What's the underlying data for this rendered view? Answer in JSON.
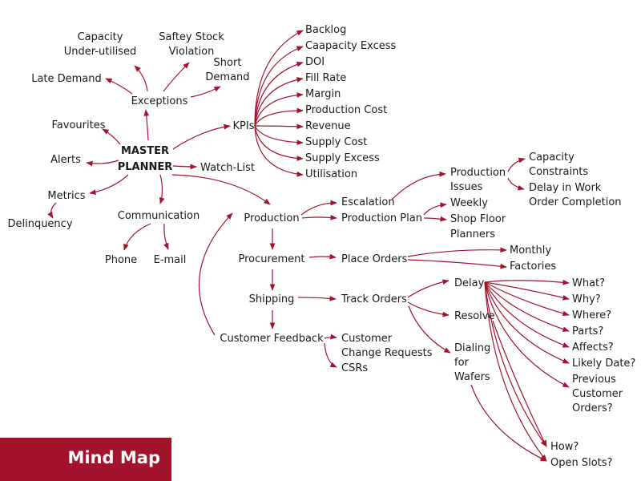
{
  "badge": {
    "label": "Mind Map"
  },
  "colors": {
    "accent": "#a3132c",
    "text": "#1a1a1a",
    "badge_text": "#ffffff"
  },
  "nodes": {
    "master_planner": [
      "MASTER",
      "PLANNER"
    ],
    "exceptions": "Exceptions",
    "capacity_underutilised": [
      "Capacity",
      "Under-utilised"
    ],
    "saftey_stock_violation": [
      "Saftey Stock",
      "Violation"
    ],
    "short_demand": [
      "Short",
      "Demand"
    ],
    "late_demand": "Late Demand",
    "favourites": "Favourites",
    "alerts": "Alerts",
    "metrics": "Metrics",
    "delinquency": "Delinquency",
    "communication": "Communication",
    "phone": "Phone",
    "email": "E-mail",
    "watch_list": "Watch-List",
    "kpis": "KPIs",
    "kpi_items": [
      "Backlog",
      "Caapacity Excess",
      "DOI",
      "Fill Rate",
      "Margin",
      "Production Cost",
      "Revenue",
      "Supply Cost",
      "Supply Excess",
      "Utilisation"
    ],
    "production": "Production",
    "escalation": "Escalation",
    "production_plan": "Production Plan",
    "production_issues": [
      "Production",
      "Issues"
    ],
    "capacity_constraints": [
      "Capacity",
      "Constraints"
    ],
    "delay_work_order": [
      "Delay in Work",
      "Order Completion"
    ],
    "weekly": "Weekly",
    "shop_floor_planners": [
      "Shop Floor",
      "Planners"
    ],
    "procurement": "Procurement",
    "place_orders": "Place Orders",
    "monthly": "Monthly",
    "factories": "Factories",
    "shipping": "Shipping",
    "track_orders": "Track Orders",
    "delay": "Delay",
    "resolve": "Resolve",
    "dialing_for_wafers": [
      "Dialing",
      "for",
      "Wafers"
    ],
    "delay_questions": [
      "What?",
      "Why?",
      "Where?",
      "Parts?",
      "Affects?",
      "Likely Date?"
    ],
    "previous_customer_orders": [
      "Previous",
      "Customer",
      "Orders?"
    ],
    "how": "How?",
    "open_slots": "Open Slots?",
    "customer_feedback": "Customer Feedback",
    "customer_change_requests": [
      "Customer",
      "Change Requests"
    ],
    "csrs": "CSRs"
  }
}
